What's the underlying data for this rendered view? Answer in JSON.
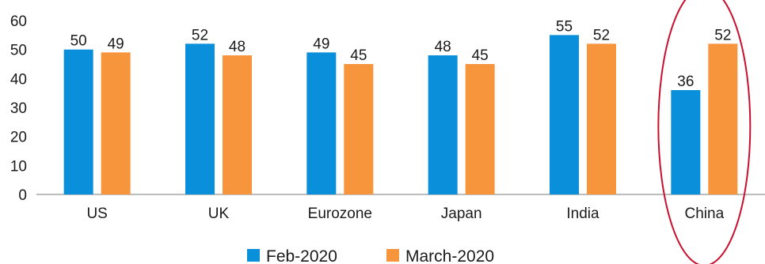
{
  "chart_data": {
    "type": "bar",
    "categories": [
      "US",
      "UK",
      "Eurozone",
      "Japan",
      "India",
      "China"
    ],
    "series": [
      {
        "name": "Feb-2020",
        "color": "#0a8fdb",
        "values": [
          50,
          52,
          49,
          48,
          55,
          36
        ]
      },
      {
        "name": "March-2020",
        "color": "#f7953d",
        "values": [
          49,
          48,
          45,
          45,
          52,
          52
        ]
      }
    ],
    "ylim": [
      0,
      60
    ],
    "yticks": [
      "0",
      "10",
      "20",
      "30",
      "40",
      "50",
      "60"
    ],
    "grid": false,
    "legend_position": "bottom",
    "highlight": {
      "category": "China",
      "shape": "ellipse",
      "color": "#c8102e"
    }
  }
}
